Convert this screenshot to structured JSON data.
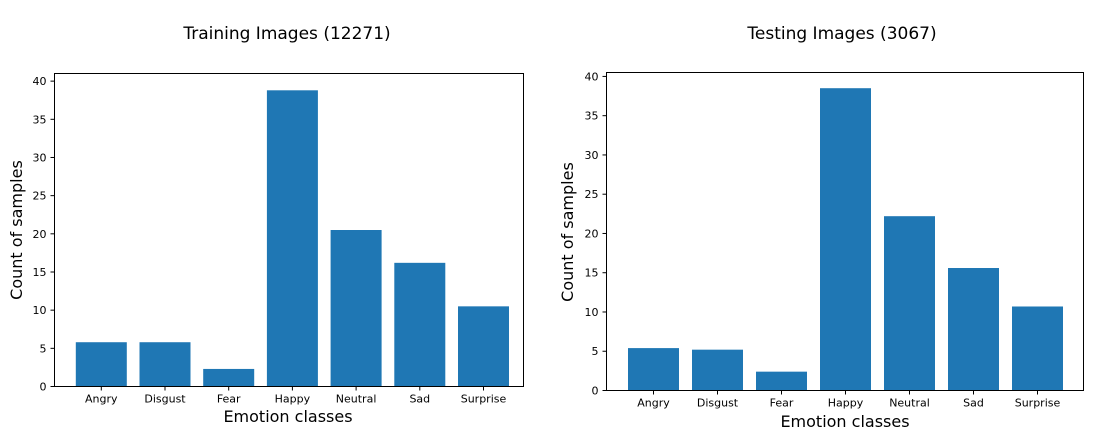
{
  "chart_data": [
    {
      "type": "bar",
      "title": "Training Images (12271)",
      "xlabel": "Emotion classes",
      "ylabel": "Count of samples",
      "categories": [
        "Angry",
        "Disgust",
        "Fear",
        "Happy",
        "Neutral",
        "Sad",
        "Surprise"
      ],
      "values": [
        5.8,
        5.8,
        2.3,
        38.8,
        20.5,
        16.2,
        10.5
      ],
      "ylim": [
        0,
        41
      ],
      "yticks": [
        0,
        5,
        10,
        15,
        20,
        25,
        30,
        35,
        40
      ],
      "grid": false,
      "bar_color": "#1f77b4"
    },
    {
      "type": "bar",
      "title": "Testing Images (3067)",
      "xlabel": "Emotion classes",
      "ylabel": "Count of samples",
      "categories": [
        "Angry",
        "Disgust",
        "Fear",
        "Happy",
        "Neutral",
        "Sad",
        "Surprise"
      ],
      "values": [
        5.4,
        5.2,
        2.4,
        38.5,
        22.2,
        15.6,
        10.7
      ],
      "ylim": [
        0,
        40.5
      ],
      "yticks": [
        0,
        5,
        10,
        15,
        20,
        25,
        30,
        35,
        40
      ],
      "grid": false,
      "bar_color": "#1f77b4"
    }
  ]
}
